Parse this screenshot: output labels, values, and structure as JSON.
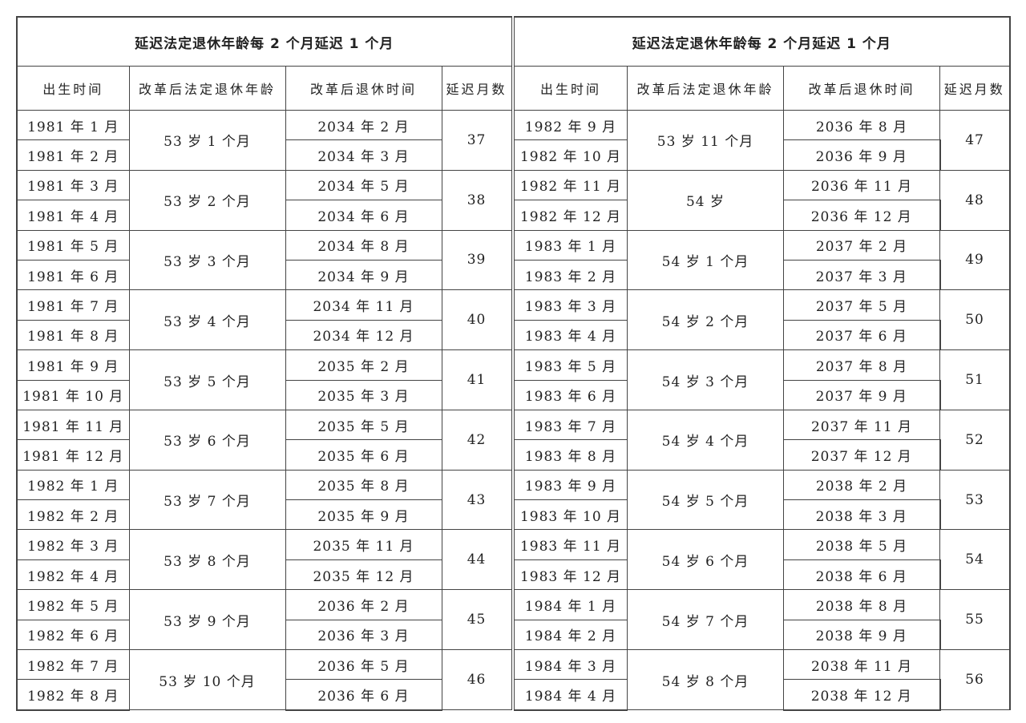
{
  "tables": [
    {
      "title": "延迟法定退休年龄每 2 个月延迟 1 个月",
      "headers": [
        "出生时间",
        "改革后法定退休年龄",
        "改革后退休时间",
        "延迟月数"
      ],
      "groups": [
        {
          "birth": [
            "1981 年 1 月",
            "1981 年 2 月"
          ],
          "age": "53 岁 1 个月",
          "retire": [
            "2034 年 2 月",
            "2034 年 3 月"
          ],
          "delay": "37"
        },
        {
          "birth": [
            "1981 年 3 月",
            "1981 年 4 月"
          ],
          "age": "53 岁 2 个月",
          "retire": [
            "2034 年 5 月",
            "2034 年 6 月"
          ],
          "delay": "38"
        },
        {
          "birth": [
            "1981 年 5 月",
            "1981 年 6 月"
          ],
          "age": "53 岁 3 个月",
          "retire": [
            "2034 年 8 月",
            "2034 年 9 月"
          ],
          "delay": "39"
        },
        {
          "birth": [
            "1981 年 7 月",
            "1981 年 8 月"
          ],
          "age": "53 岁 4 个月",
          "retire": [
            "2034 年 11 月",
            "2034 年 12 月"
          ],
          "delay": "40"
        },
        {
          "birth": [
            "1981 年 9 月",
            "1981 年 10 月"
          ],
          "age": "53 岁 5 个月",
          "retire": [
            "2035 年 2 月",
            "2035 年 3 月"
          ],
          "delay": "41"
        },
        {
          "birth": [
            "1981 年 11 月",
            "1981 年 12 月"
          ],
          "age": "53 岁 6 个月",
          "retire": [
            "2035 年 5 月",
            "2035 年 6 月"
          ],
          "delay": "42"
        },
        {
          "birth": [
            "1982 年 1 月",
            "1982 年 2 月"
          ],
          "age": "53 岁 7 个月",
          "retire": [
            "2035 年 8 月",
            "2035 年 9 月"
          ],
          "delay": "43"
        },
        {
          "birth": [
            "1982 年 3 月",
            "1982 年 4 月"
          ],
          "age": "53 岁 8 个月",
          "retire": [
            "2035 年 11 月",
            "2035 年 12 月"
          ],
          "delay": "44"
        },
        {
          "birth": [
            "1982 年 5 月",
            "1982 年 6 月"
          ],
          "age": "53 岁 9 个月",
          "retire": [
            "2036 年 2 月",
            "2036 年 3 月"
          ],
          "delay": "45"
        },
        {
          "birth": [
            "1982 年 7 月",
            "1982 年 8 月"
          ],
          "age": "53 岁 10 个月",
          "retire": [
            "2036 年 5 月",
            "2036 年 6 月"
          ],
          "delay": "46"
        }
      ]
    },
    {
      "title": "延迟法定退休年龄每 2 个月延迟 1 个月",
      "headers": [
        "出生时间",
        "改革后法定退休年龄",
        "改革后退休时间",
        "延迟月数"
      ],
      "groups": [
        {
          "birth": [
            "1982 年 9 月",
            "1982 年 10 月"
          ],
          "age": "53 岁 11 个月",
          "retire": [
            "2036 年 8 月",
            "2036 年 9 月"
          ],
          "delay": "47"
        },
        {
          "birth": [
            "1982 年 11 月",
            "1982 年 12 月"
          ],
          "age": "54 岁",
          "retire": [
            "2036 年 11 月",
            "2036 年 12 月"
          ],
          "delay": "48"
        },
        {
          "birth": [
            "1983 年 1 月",
            "1983 年 2 月"
          ],
          "age": "54 岁 1 个月",
          "retire": [
            "2037 年 2 月",
            "2037 年 3 月"
          ],
          "delay": "49"
        },
        {
          "birth": [
            "1983 年 3 月",
            "1983 年 4 月"
          ],
          "age": "54 岁 2 个月",
          "retire": [
            "2037 年 5 月",
            "2037 年 6 月"
          ],
          "delay": "50"
        },
        {
          "birth": [
            "1983 年 5 月",
            "1983 年 6 月"
          ],
          "age": "54 岁 3 个月",
          "retire": [
            "2037 年 8 月",
            "2037 年 9 月"
          ],
          "delay": "51"
        },
        {
          "birth": [
            "1983 年 7 月",
            "1983 年 8 月"
          ],
          "age": "54 岁 4 个月",
          "retire": [
            "2037 年 11 月",
            "2037 年 12 月"
          ],
          "delay": "52"
        },
        {
          "birth": [
            "1983 年 9 月",
            "1983 年 10 月"
          ],
          "age": "54 岁 5 个月",
          "retire": [
            "2038 年 2 月",
            "2038 年 3 月"
          ],
          "delay": "53"
        },
        {
          "birth": [
            "1983 年 11 月",
            "1983 年 12 月"
          ],
          "age": "54 岁 6 个月",
          "retire": [
            "2038 年 5 月",
            "2038 年 6 月"
          ],
          "delay": "54"
        },
        {
          "birth": [
            "1984 年 1 月",
            "1984 年 2 月"
          ],
          "age": "54 岁 7 个月",
          "retire": [
            "2038 年 8 月",
            "2038 年 9 月"
          ],
          "delay": "55"
        },
        {
          "birth": [
            "1984 年 3 月",
            "1984 年 4 月"
          ],
          "age": "54 岁 8 个月",
          "retire": [
            "2038 年 11 月",
            "2038 年 12 月"
          ],
          "delay": "56"
        }
      ]
    }
  ]
}
